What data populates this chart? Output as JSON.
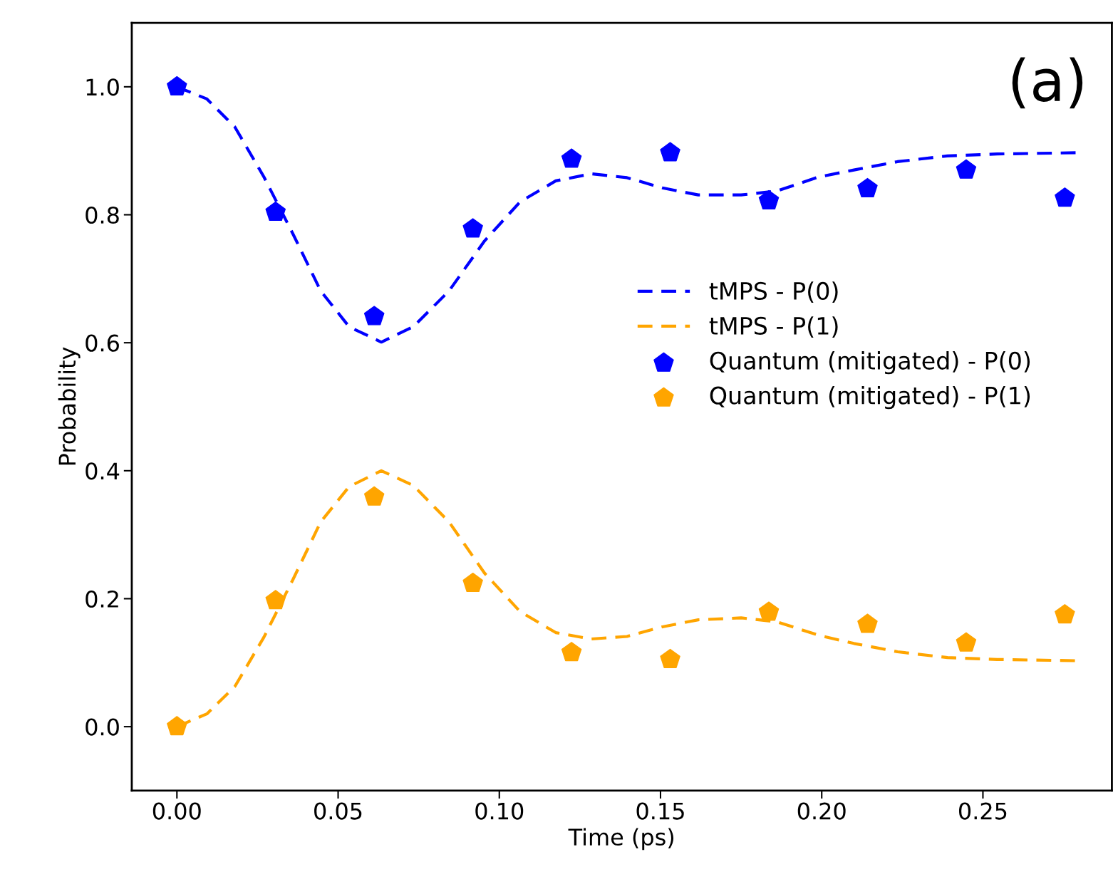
{
  "chart_data": {
    "type": "scatter",
    "xlabel": "Time (ps)",
    "ylabel": "Probability",
    "annotations": [
      "(a)"
    ],
    "xlim": [
      -0.014,
      0.29
    ],
    "ylim": [
      -0.1,
      1.1
    ],
    "xticks": [
      {
        "value": 0,
        "label": "0.00"
      },
      {
        "value": 0.05,
        "label": "0.05"
      },
      {
        "value": 0.1,
        "label": "0.10"
      },
      {
        "value": 0.15,
        "label": "0.15"
      },
      {
        "value": 0.2,
        "label": "0.20"
      },
      {
        "value": 0.25,
        "label": "0.25"
      }
    ],
    "yticks": [
      {
        "value": 0,
        "label": "0.0"
      },
      {
        "value": 0.2,
        "label": "0.2"
      },
      {
        "value": 0.4,
        "label": "0.4"
      },
      {
        "value": 0.6,
        "label": "0.6"
      },
      {
        "value": 0.8,
        "label": "0.8"
      },
      {
        "value": 1,
        "label": "1.0"
      }
    ],
    "grid": false,
    "legend": "right",
    "series": [
      {
        "name": "tMPS - P(0)",
        "type": "line",
        "line_style": "dashed",
        "color": "#0000ff",
        "x": [
          0,
          0.0093,
          0.018,
          0.027,
          0.036,
          0.0446,
          0.0534,
          0.0634,
          0.0733,
          0.0844,
          0.0954,
          0.1064,
          0.1175,
          0.1285,
          0.1396,
          0.1506,
          0.1617,
          0.175,
          0.186,
          0.199,
          0.21,
          0.2235,
          0.239,
          0.2544,
          0.2798
        ],
        "values": [
          1.0,
          0.981,
          0.937,
          0.859,
          0.77,
          0.681,
          0.625,
          0.601,
          0.625,
          0.681,
          0.759,
          0.82,
          0.853,
          0.864,
          0.858,
          0.842,
          0.831,
          0.831,
          0.837,
          0.859,
          0.87,
          0.883,
          0.892,
          0.895,
          0.897
        ]
      },
      {
        "name": "tMPS - P(1)",
        "type": "line",
        "line_style": "dashed",
        "color": "#ffa500",
        "x": [
          0,
          0.0093,
          0.018,
          0.027,
          0.036,
          0.0446,
          0.0534,
          0.0634,
          0.0733,
          0.0844,
          0.0954,
          0.1064,
          0.1175,
          0.1285,
          0.1396,
          0.1506,
          0.1617,
          0.175,
          0.186,
          0.199,
          0.21,
          0.2235,
          0.239,
          0.2544,
          0.2798
        ],
        "values": [
          0,
          0.02,
          0.063,
          0.14,
          0.23,
          0.32,
          0.375,
          0.4,
          0.377,
          0.32,
          0.24,
          0.18,
          0.147,
          0.137,
          0.141,
          0.156,
          0.167,
          0.17,
          0.164,
          0.143,
          0.13,
          0.117,
          0.108,
          0.105,
          0.103
        ]
      },
      {
        "name": "Quantum (mitigated) - P(0)",
        "color": "#0000ff",
        "x": [
          0,
          0.0306,
          0.0612,
          0.0918,
          0.1224,
          0.153,
          0.1836,
          0.2142,
          0.2448,
          0.2754
        ],
        "values": [
          1.0,
          0.804,
          0.641,
          0.778,
          0.887,
          0.897,
          0.822,
          0.841,
          0.87,
          0.826
        ]
      },
      {
        "name": "Quantum (mitigated) - P(1)",
        "color": "#ffa500",
        "x": [
          0,
          0.0306,
          0.0612,
          0.0918,
          0.1224,
          0.153,
          0.1836,
          0.2142,
          0.2448,
          0.2754
        ],
        "values": [
          0,
          0.197,
          0.359,
          0.224,
          0.116,
          0.105,
          0.179,
          0.16,
          0.131,
          0.175
        ]
      }
    ]
  }
}
